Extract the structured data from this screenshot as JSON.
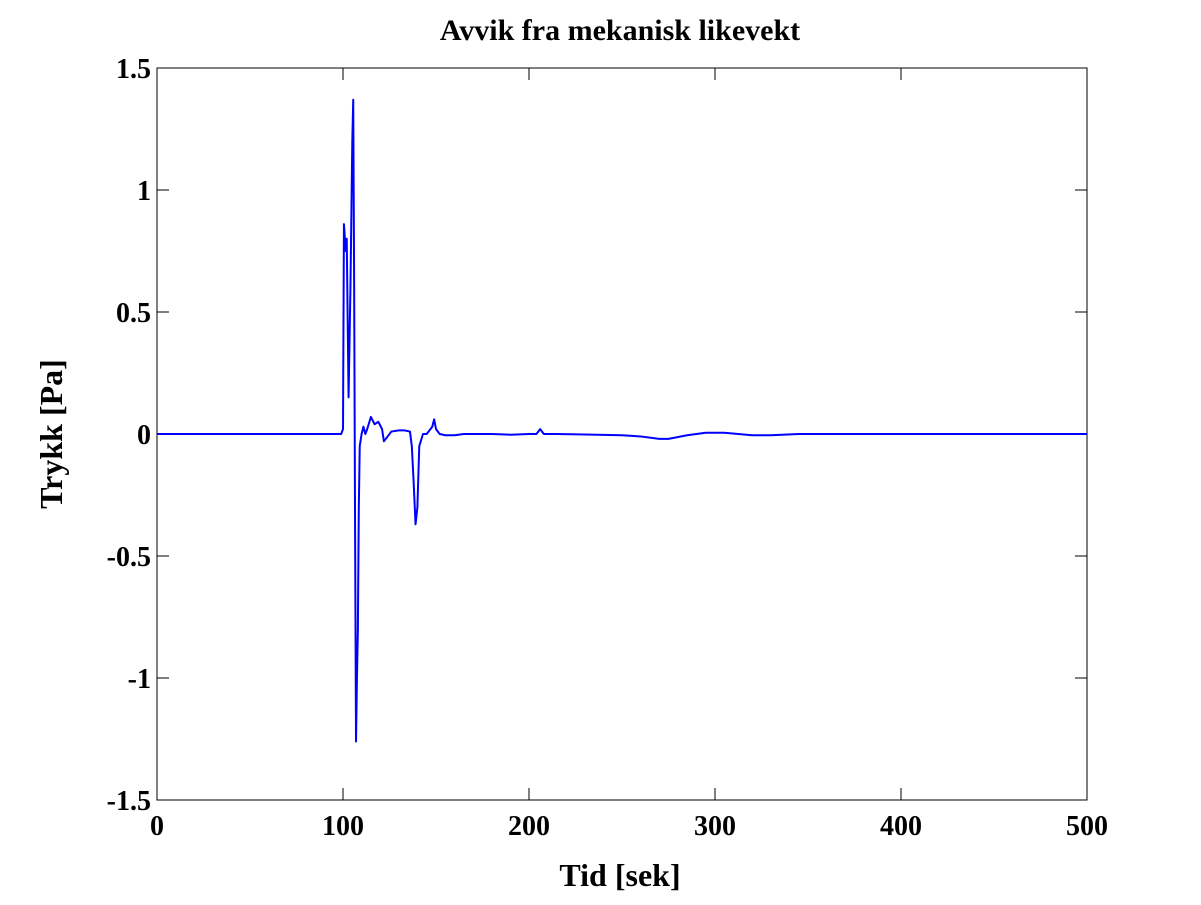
{
  "chart_data": {
    "type": "line",
    "title": "Avvik fra mekanisk likevekt",
    "x_label": "Tid [sek]",
    "y_label": "Trykk [Pa]",
    "xlim": [
      0,
      500
    ],
    "xticks": [
      0,
      100,
      200,
      300,
      400,
      500
    ],
    "ylim": [
      -1.5,
      1.5
    ],
    "yticks": [
      -1.5,
      -1,
      -0.5,
      0,
      0.5,
      1,
      1.5
    ],
    "grid": false,
    "series": [
      {
        "color": "#0000ff",
        "x": [
          0,
          99,
          100,
          100.5,
          101.5,
          102,
          103,
          104,
          105,
          105.5,
          106,
          106.5,
          107,
          107.5,
          108,
          108.5,
          109,
          110,
          111,
          112,
          113,
          115,
          117,
          119,
          121,
          122,
          124,
          126,
          130,
          133,
          136,
          137,
          138,
          139,
          140,
          141,
          143,
          145,
          148,
          149,
          150,
          152,
          155,
          160,
          165,
          170,
          180,
          190,
          200,
          204,
          206,
          208,
          215,
          230,
          250,
          260,
          270,
          275,
          285,
          295,
          305,
          320,
          330,
          345,
          400,
          500
        ],
        "values": [
          0,
          0,
          0.02,
          0.86,
          0.75,
          0.8,
          0.15,
          0.6,
          1.2,
          1.37,
          0.6,
          -0.4,
          -1.26,
          -1.0,
          -0.8,
          -0.3,
          -0.05,
          0,
          0.03,
          0,
          0.02,
          0.07,
          0.04,
          0.05,
          0.02,
          -0.03,
          -0.01,
          0.01,
          0.015,
          0.015,
          0.01,
          -0.05,
          -0.2,
          -0.37,
          -0.3,
          -0.05,
          0,
          0,
          0.03,
          0.06,
          0.02,
          0,
          -0.005,
          -0.005,
          0,
          0,
          0,
          -0.003,
          0,
          0,
          0.02,
          0,
          0,
          -0.002,
          -0.005,
          -0.01,
          -0.02,
          -0.02,
          -0.005,
          0.005,
          0.005,
          -0.005,
          -0.005,
          0,
          0,
          0
        ]
      }
    ]
  }
}
